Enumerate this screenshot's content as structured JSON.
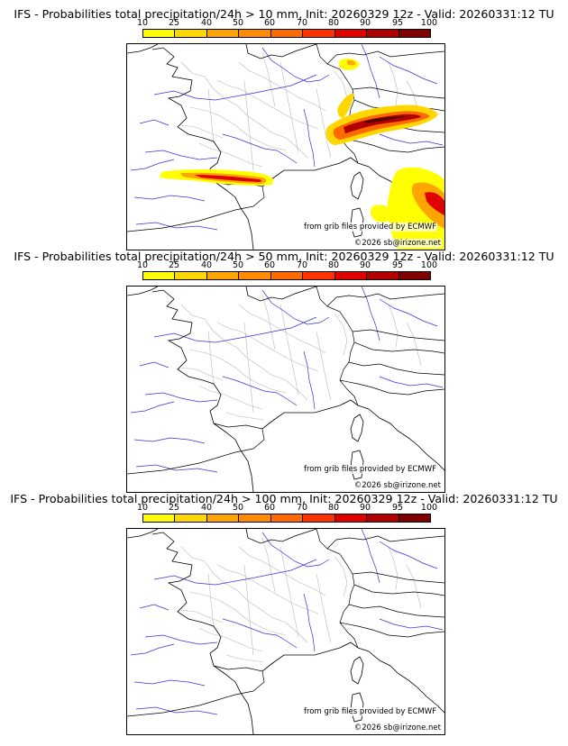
{
  "colorbar": {
    "ticks": [
      "10",
      "25",
      "40",
      "50",
      "60",
      "70",
      "80",
      "90",
      "95",
      "100"
    ],
    "colors": [
      "#ffff00",
      "#ffd700",
      "#ffa500",
      "#ff8c00",
      "#ff6a00",
      "#ff3300",
      "#e00000",
      "#b00000",
      "#800000",
      "#500000"
    ]
  },
  "panels": [
    {
      "title": "IFS - Probabilities total precipitation/24h > 10 mm, Init: 20260329 12z - Valid: 20260331:12 TU",
      "credit_source": "from grib files provided by ECMWF",
      "credit_copyright": "©2026 sb@irizone.net",
      "has_precip": true
    },
    {
      "title": "IFS - Probabilities total precipitation/24h > 50 mm, Init: 20260329 12z - Valid: 20260331:12 TU",
      "credit_source": "from grib files provided by ECMWF",
      "credit_copyright": "©2026 sb@irizone.net",
      "has_precip": false
    },
    {
      "title": "IFS - Probabilities total precipitation/24h > 100 mm, Init: 20260329 12z - Valid: 20260331:12 TU",
      "credit_source": "from grib files provided by ECMWF",
      "credit_copyright": "©2026 sb@irizone.net",
      "has_precip": false
    }
  ]
}
